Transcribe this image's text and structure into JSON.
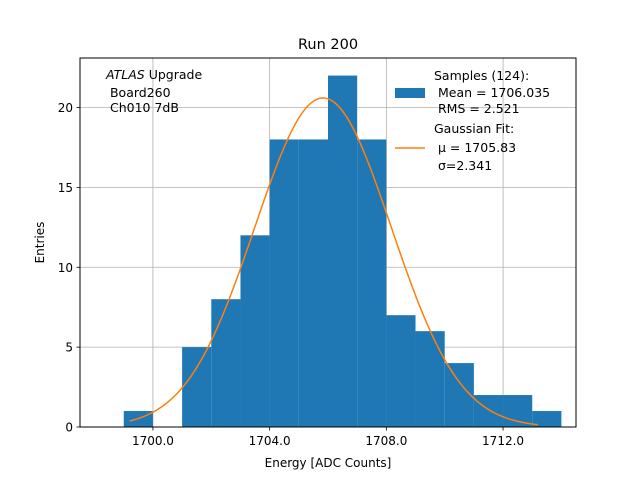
{
  "chart_data": {
    "type": "bar",
    "title": "Run 200",
    "xlabel": "Energy [ADC Counts]",
    "ylabel": "Entries",
    "xlim": [
      1697.5,
      1714.5
    ],
    "ylim": [
      0,
      23.1
    ],
    "grid": true,
    "x_ticks": [
      1700.0,
      1704.0,
      1708.0,
      1712.0
    ],
    "x_tick_labels": [
      "1700.0",
      "1704.0",
      "1708.0",
      "1712.0"
    ],
    "y_ticks": [
      0,
      5,
      10,
      15,
      20
    ],
    "y_tick_labels": [
      "0",
      "5",
      "10",
      "15",
      "20"
    ],
    "histogram": {
      "name": "Samples (124):",
      "color": "#1f77b4",
      "bins": [
        {
          "x0": 1699.0,
          "x1": 1700.0,
          "count": 1
        },
        {
          "x0": 1700.0,
          "x1": 1701.0,
          "count": 0
        },
        {
          "x0": 1701.0,
          "x1": 1702.0,
          "count": 5
        },
        {
          "x0": 1702.0,
          "x1": 1703.0,
          "count": 8
        },
        {
          "x0": 1703.0,
          "x1": 1704.0,
          "count": 12
        },
        {
          "x0": 1704.0,
          "x1": 1705.0,
          "count": 18
        },
        {
          "x0": 1705.0,
          "x1": 1706.0,
          "count": 18
        },
        {
          "x0": 1706.0,
          "x1": 1707.0,
          "count": 22
        },
        {
          "x0": 1707.0,
          "x1": 1708.0,
          "count": 18
        },
        {
          "x0": 1708.0,
          "x1": 1709.0,
          "count": 7
        },
        {
          "x0": 1709.0,
          "x1": 1710.0,
          "count": 6
        },
        {
          "x0": 1710.0,
          "x1": 1711.0,
          "count": 4
        },
        {
          "x0": 1711.0,
          "x1": 1712.0,
          "count": 2
        },
        {
          "x0": 1712.0,
          "x1": 1713.0,
          "count": 2
        },
        {
          "x0": 1713.0,
          "x1": 1714.0,
          "count": 1
        }
      ]
    },
    "gaussian_fit": {
      "name": "Gaussian Fit:",
      "color": "#ff7f0e",
      "mu": 1705.83,
      "sigma": 2.341,
      "amplitude": 20.6,
      "x_range": [
        1699.2,
        1713.2
      ]
    },
    "legend": {
      "position": "top-right",
      "samples_lines": [
        "Samples (124):",
        " Mean = 1706.035",
        " RMS = 2.521"
      ],
      "fit_lines": [
        "Gaussian Fit:",
        " μ = 1705.83",
        " σ=2.341"
      ]
    },
    "annotation": {
      "position": "top-left",
      "atlas": "ATLAS",
      "upgrade": " Upgrade",
      "lines": [
        " Board260",
        " Ch010 7dB"
      ]
    }
  }
}
